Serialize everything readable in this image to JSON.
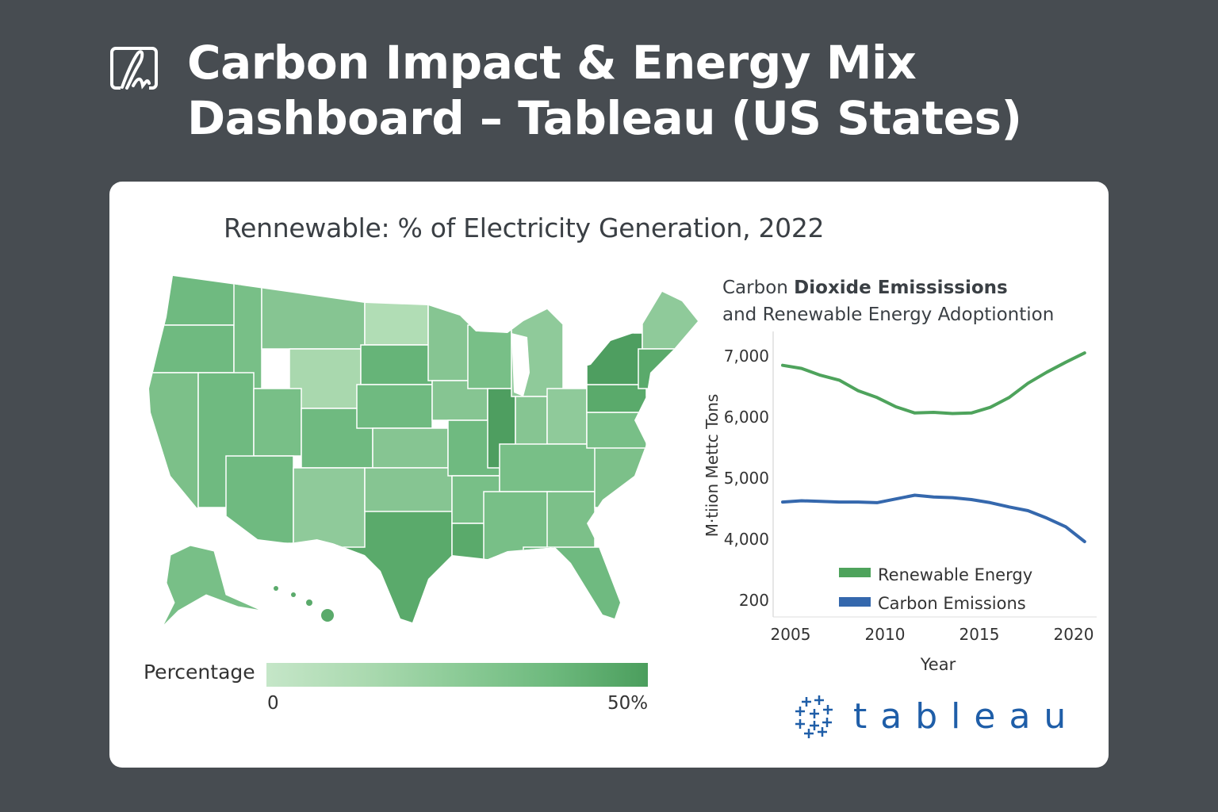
{
  "header": {
    "title": "Carbon Impact & Energy Mix Dashboard – Tableau (US States)",
    "logo_icon": "signature-icon"
  },
  "map": {
    "title": "Rennewable: % of Electricity Generation, 2022",
    "legend": {
      "label": "Percentage",
      "min": "0",
      "max": "50%",
      "color_low": "#c5e6c8",
      "color_high": "#4b9e5d"
    }
  },
  "chart_data": {
    "type": "line",
    "title_part1": "Carbon",
    "title_part2": "Dioxide Emississions",
    "title_line2": "and Renewable Energy Adoptiontion",
    "xlabel": "Year",
    "ylabel": "M·tiion Mettc Tons",
    "x_ticks": [
      "2005",
      "2010",
      "2015",
      "2020"
    ],
    "y_ticks": [
      "7,000",
      "6,000",
      "5,000",
      "4,000",
      "200"
    ],
    "x": [
      2005,
      2006,
      2007,
      2008,
      2009,
      2010,
      2011,
      2012,
      2013,
      2014,
      2015,
      2016,
      2017,
      2018,
      2019,
      2020,
      2021
    ],
    "series": [
      {
        "name": "Renewable Energy",
        "color": "#4ea35c",
        "values": [
          6850,
          6800,
          6690,
          6610,
          6440,
          6330,
          6180,
          6080,
          6090,
          6070,
          6080,
          6170,
          6330,
          6560,
          6740,
          6900,
          7050
        ]
      },
      {
        "name": "Carbon Emissions",
        "color": "#3568ad",
        "values": [
          4640,
          4660,
          4650,
          4640,
          4640,
          4630,
          4690,
          4750,
          4720,
          4710,
          4680,
          4630,
          4560,
          4500,
          4380,
          4240,
          4000
        ]
      }
    ],
    "legend_position": "bottom-right",
    "grid": false
  },
  "brand": {
    "name": "tableau",
    "color": "#1f5ea8"
  }
}
